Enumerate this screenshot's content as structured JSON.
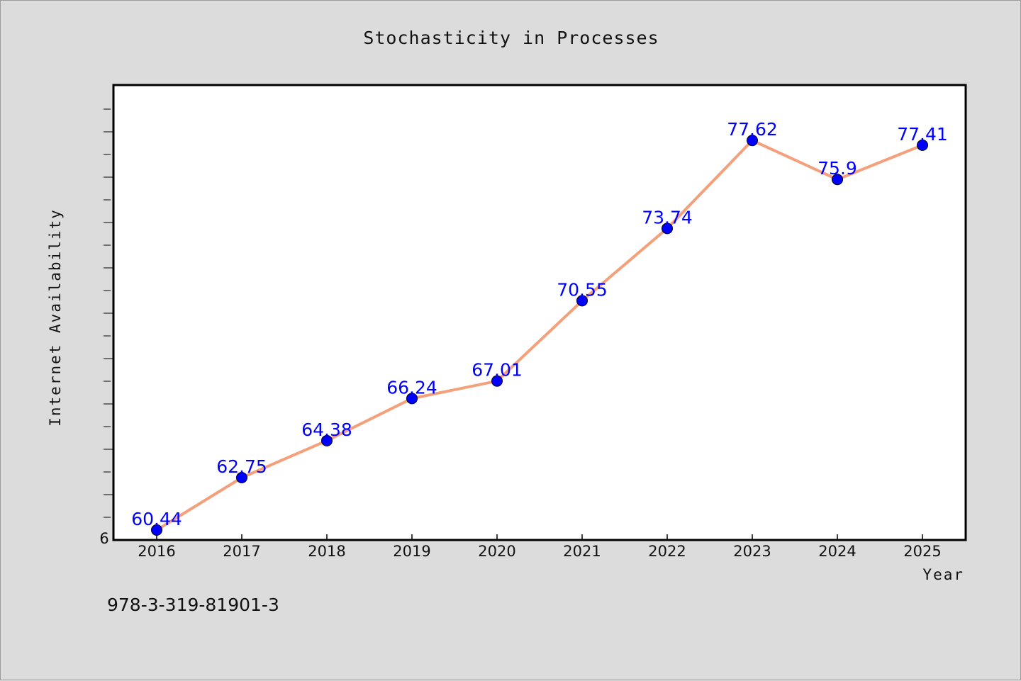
{
  "chart_data": {
    "type": "line",
    "title": "Stochasticity in Processes",
    "xlabel": "Year",
    "ylabel": "Internet Availability",
    "categories": [
      "2016",
      "2017",
      "2018",
      "2019",
      "2020",
      "2021",
      "2022",
      "2023",
      "2024",
      "2025"
    ],
    "series": [
      {
        "values": [
          60.44,
          62.75,
          64.38,
          66.24,
          67.01,
          70.55,
          73.74,
          77.62,
          75.9,
          77.41
        ],
        "data_labels": [
          "60.44",
          "62.75",
          "64.38",
          "66.24",
          "67.01",
          "70.55",
          "73.74",
          "77.62",
          "75.9",
          "77.41"
        ],
        "line_color": "#f4a07a",
        "marker_color": "#0000ff"
      }
    ],
    "ylim": [
      60,
      79
    ],
    "y_tick_labels": [
      "6"
    ],
    "grid": false,
    "legend": "none"
  },
  "footer": {
    "isbn": "978-3-319-81901-3"
  },
  "colors": {
    "background": "#dcdcdc",
    "plot_background": "#ffffff",
    "axis": "#000000"
  }
}
